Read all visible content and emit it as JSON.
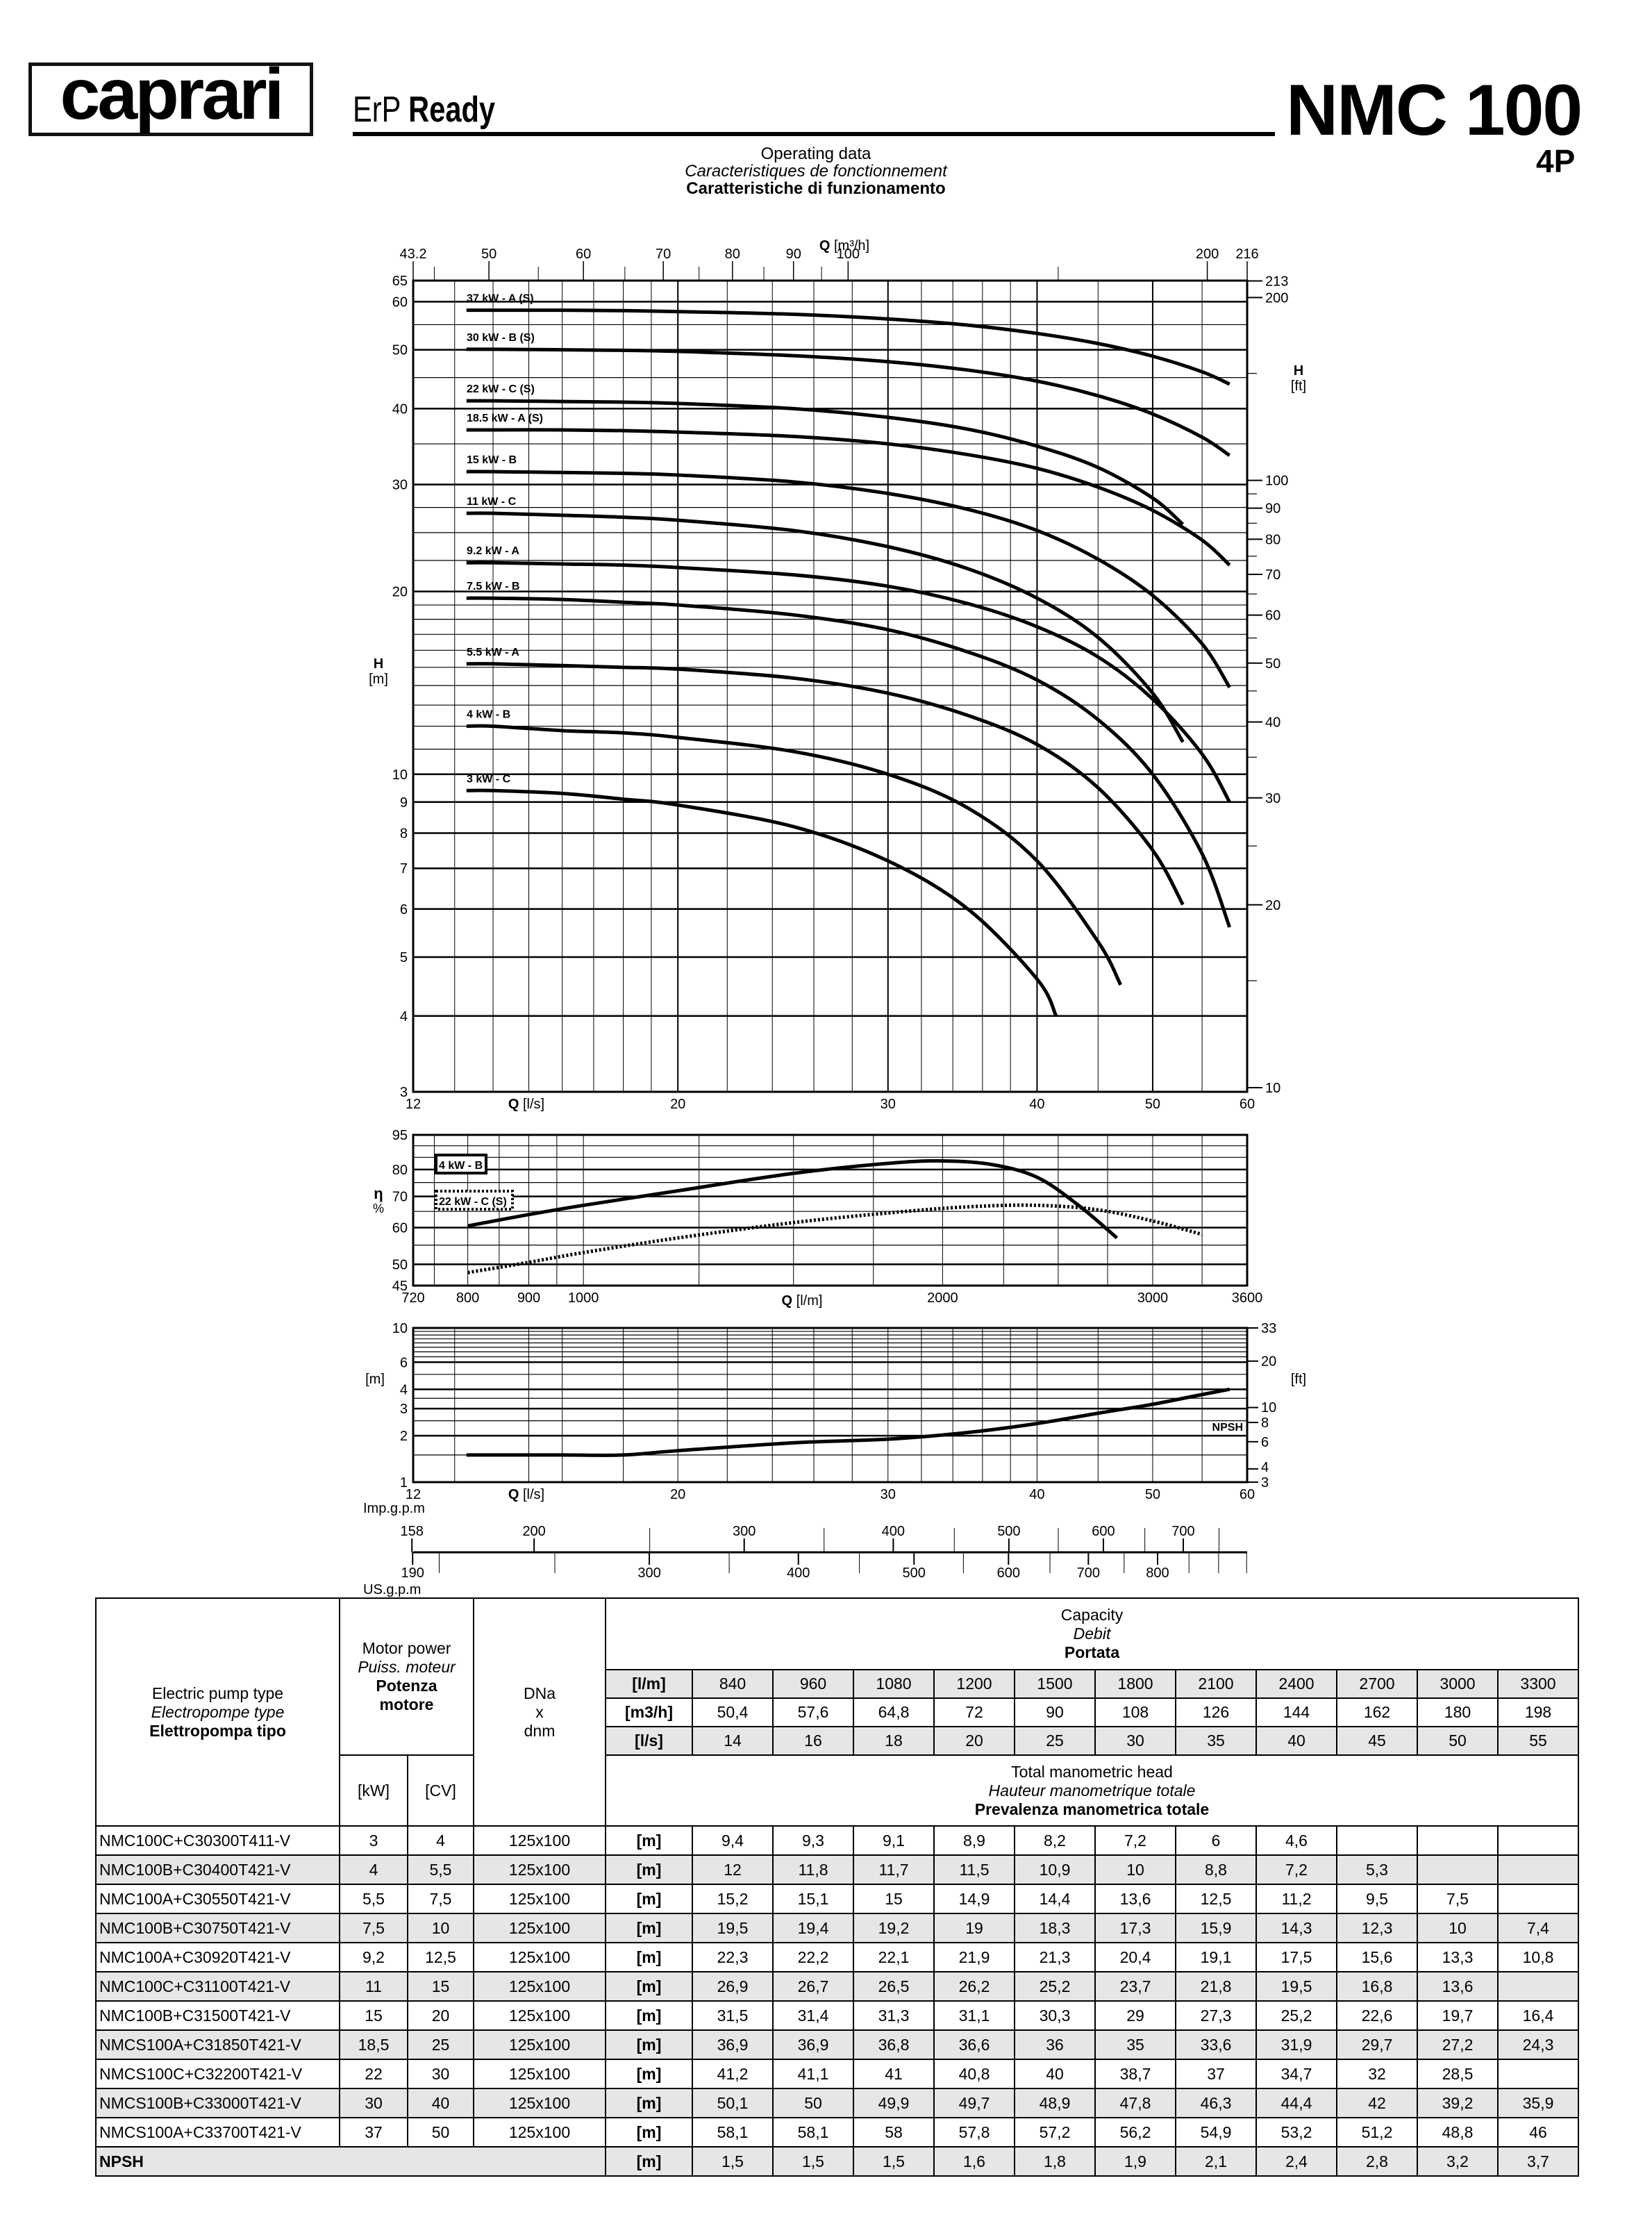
{
  "header": {
    "brand": "caprari",
    "tagline_light": "ErP",
    "tagline_bold": "Ready",
    "model": "NMC 100",
    "poles": "4P",
    "subtitle_en": "Operating data",
    "subtitle_fr": "Caracteristiques de fonctionnement",
    "subtitle_it": "Caratteristiche di funzionamento"
  },
  "colors": {
    "ink": "#000000",
    "row_shade": "#e6e6e6"
  },
  "flow_scales": {
    "imp_label": "Imp.g.p.m",
    "us_label": "US.g.p.m",
    "imp_ticks": [
      158,
      200,
      300,
      400,
      500,
      600,
      700
    ],
    "us_ticks": [
      190,
      300,
      400,
      500,
      600,
      700,
      800
    ]
  },
  "chart_data": [
    {
      "type": "line",
      "title": "",
      "x_label": "Q [l/s]",
      "x_top_label": "Q [m³/h]",
      "y_label": "H [m]",
      "y2_label": "H [ft]",
      "x_scale": "log",
      "y_scale": "log",
      "xlim": [
        12,
        60
      ],
      "ylim": [
        3,
        65
      ],
      "grid": true,
      "x_ticks": [
        12,
        20,
        30,
        40,
        50,
        60
      ],
      "x_top_ticks": [
        "43.2",
        "50",
        "60",
        "70",
        "80",
        "90",
        "100",
        "200",
        "216"
      ],
      "y_ticks": [
        3,
        4,
        5,
        6,
        7,
        8,
        9,
        10,
        20,
        30,
        40,
        50,
        60,
        65
      ],
      "y2_ticks": [
        10,
        20,
        30,
        40,
        50,
        60,
        70,
        80,
        90,
        100,
        200,
        213
      ],
      "series": [
        {
          "name": "37 kW - A (S)",
          "x": [
            13.3,
            14,
            16,
            18,
            20,
            25,
            30,
            35,
            40,
            45,
            50,
            55,
            58
          ],
          "y": [
            58.1,
            58.1,
            58.1,
            58,
            57.8,
            57.2,
            56.2,
            54.9,
            53.2,
            51.2,
            48.8,
            46,
            43.9
          ]
        },
        {
          "name": "30 kW - B (S)",
          "x": [
            13.3,
            14,
            16,
            18,
            20,
            25,
            30,
            35,
            40,
            45,
            50,
            55,
            58
          ],
          "y": [
            50.1,
            50.1,
            50,
            49.9,
            49.7,
            48.9,
            47.8,
            46.3,
            44.4,
            42,
            39.2,
            35.9,
            33.5
          ]
        },
        {
          "name": "22 kW - C (S)",
          "x": [
            13.3,
            14,
            16,
            18,
            20,
            25,
            30,
            35,
            40,
            45,
            50,
            53
          ],
          "y": [
            41.2,
            41.2,
            41.1,
            41,
            40.8,
            40,
            38.7,
            37,
            34.7,
            32,
            28.5,
            25.8
          ]
        },
        {
          "name": "18.5 kW - A (S)",
          "x": [
            13.3,
            14,
            16,
            18,
            20,
            25,
            30,
            35,
            40,
            45,
            50,
            55,
            58
          ],
          "y": [
            36.9,
            36.9,
            36.9,
            36.8,
            36.6,
            36,
            35,
            33.6,
            31.9,
            29.7,
            27.2,
            24.3,
            22.1
          ]
        },
        {
          "name": "15 kW - B",
          "x": [
            13.3,
            14,
            16,
            18,
            20,
            25,
            30,
            35,
            40,
            45,
            50,
            55,
            58
          ],
          "y": [
            31.5,
            31.5,
            31.4,
            31.3,
            31.1,
            30.3,
            29,
            27.3,
            25.2,
            22.6,
            19.7,
            16.4,
            13.9
          ]
        },
        {
          "name": "11 kW - C",
          "x": [
            13.3,
            14,
            16,
            18,
            20,
            25,
            30,
            35,
            40,
            45,
            50,
            53
          ],
          "y": [
            26.9,
            26.9,
            26.7,
            26.5,
            26.2,
            25.2,
            23.7,
            21.8,
            19.5,
            16.8,
            13.6,
            11.3
          ]
        },
        {
          "name": "9.2 kW - A",
          "x": [
            13.3,
            14,
            16,
            18,
            20,
            25,
            30,
            35,
            40,
            45,
            50,
            55,
            58
          ],
          "y": [
            22.3,
            22.3,
            22.2,
            22.1,
            21.9,
            21.3,
            20.4,
            19.1,
            17.5,
            15.6,
            13.3,
            10.8,
            9.0
          ]
        },
        {
          "name": "7.5 kW - B",
          "x": [
            13.3,
            14,
            16,
            18,
            20,
            25,
            30,
            35,
            40,
            45,
            50,
            55,
            58
          ],
          "y": [
            19.5,
            19.5,
            19.4,
            19.2,
            19,
            18.3,
            17.3,
            15.9,
            14.3,
            12.3,
            10,
            7.4,
            5.6
          ]
        },
        {
          "name": "5.5 kW - A",
          "x": [
            13.3,
            14,
            16,
            18,
            20,
            25,
            30,
            35,
            40,
            45,
            50,
            53
          ],
          "y": [
            15.2,
            15.2,
            15.1,
            15,
            14.9,
            14.4,
            13.6,
            12.5,
            11.2,
            9.5,
            7.5,
            6.1
          ]
        },
        {
          "name": "4 kW - B",
          "x": [
            13.3,
            14,
            16,
            18,
            20,
            25,
            30,
            35,
            40,
            45,
            47
          ],
          "y": [
            12,
            12,
            11.8,
            11.7,
            11.5,
            10.9,
            10,
            8.8,
            7.2,
            5.3,
            4.5
          ]
        },
        {
          "name": "3 kW - C",
          "x": [
            13.3,
            14,
            16,
            18,
            20,
            25,
            30,
            35,
            40,
            41.5
          ],
          "y": [
            9.4,
            9.4,
            9.3,
            9.1,
            8.9,
            8.2,
            7.2,
            6,
            4.6,
            4.0
          ]
        }
      ]
    },
    {
      "type": "line",
      "title": "",
      "x_label": "Q [l/m]",
      "y_label": "η %",
      "x_scale": "log",
      "y_scale": "log",
      "xlim": [
        720,
        3600
      ],
      "ylim": [
        45,
        95
      ],
      "grid": true,
      "x_ticks": [
        720,
        800,
        900,
        1000,
        2000,
        3000,
        3600
      ],
      "y_ticks": [
        45,
        50,
        60,
        70,
        80,
        95
      ],
      "legend": "top-left",
      "series": [
        {
          "name": "4 kW - B",
          "line_style": "solid",
          "x": [
            800,
            900,
            1000,
            1200,
            1500,
            1800,
            2000,
            2200,
            2400,
            2600,
            2800
          ],
          "y": [
            60.5,
            64,
            67,
            72,
            78.5,
            82.5,
            83.5,
            82,
            77,
            67,
            57
          ]
        },
        {
          "name": "22 kW - C (S)",
          "line_style": "dotted",
          "x": [
            800,
            900,
            1000,
            1200,
            1500,
            1800,
            2100,
            2400,
            2700,
            3000,
            3300
          ],
          "y": [
            48,
            50.5,
            53,
            57,
            61.5,
            64.5,
            66.5,
            67,
            65.5,
            62,
            58
          ]
        }
      ]
    },
    {
      "type": "line",
      "title": "",
      "x_label": "Q [l/s]",
      "y_label": "[m]",
      "y2_label": "[ft]",
      "x_scale": "log",
      "y_scale": "log",
      "xlim": [
        12,
        60
      ],
      "ylim": [
        1,
        10
      ],
      "grid": true,
      "x_ticks": [
        12,
        20,
        30,
        40,
        50,
        60
      ],
      "y_ticks": [
        1,
        2,
        3,
        4,
        6,
        10
      ],
      "y2_ticks": [
        3,
        4,
        6,
        8,
        10,
        20,
        33
      ],
      "series": [
        {
          "name": "NPSH",
          "x": [
            13.3,
            14,
            16,
            18,
            20,
            25,
            30,
            35,
            40,
            45,
            50,
            55,
            58
          ],
          "y": [
            1.5,
            1.5,
            1.5,
            1.5,
            1.6,
            1.8,
            1.9,
            2.1,
            2.4,
            2.8,
            3.2,
            3.7,
            4.0
          ]
        }
      ]
    }
  ],
  "table": {
    "type_header": {
      "en": "Electric pump type",
      "fr": "Electropompe type",
      "it": "Elettropompa tipo"
    },
    "power_header": {
      "en": "Motor power",
      "fr": "Puiss. moteur",
      "it": "Potenza motore"
    },
    "dn_header": {
      "l1": "DNa",
      "l2": "x",
      "l3": "dnm"
    },
    "capacity_header": {
      "en": "Capacity",
      "fr": "Debit",
      "it": "Portata"
    },
    "head_header": {
      "en": "Total manometric head",
      "fr": "Hauteur manometrique totale",
      "it": "Prevalenza manometrica totale"
    },
    "kw_unit": "[kW]",
    "cv_unit": "[CV]",
    "flow_rows": [
      {
        "unit": "[l/m]",
        "values": [
          "840",
          "960",
          "1080",
          "1200",
          "1500",
          "1800",
          "2100",
          "2400",
          "2700",
          "3000",
          "3300"
        ]
      },
      {
        "unit": "[m3/h]",
        "values": [
          "50,4",
          "57,6",
          "64,8",
          "72",
          "90",
          "108",
          "126",
          "144",
          "162",
          "180",
          "198"
        ]
      },
      {
        "unit": "[l/s]",
        "values": [
          "14",
          "16",
          "18",
          "20",
          "25",
          "30",
          "35",
          "40",
          "45",
          "50",
          "55"
        ]
      }
    ],
    "rows": [
      {
        "type": "NMC100C+C30300T411-V",
        "kw": "3",
        "cv": "4",
        "dn": "125x100",
        "unit": "[m]",
        "values": [
          "9,4",
          "9,3",
          "9,1",
          "8,9",
          "8,2",
          "7,2",
          "6",
          "4,6",
          "",
          "",
          ""
        ]
      },
      {
        "type": "NMC100B+C30400T421-V",
        "kw": "4",
        "cv": "5,5",
        "dn": "125x100",
        "unit": "[m]",
        "values": [
          "12",
          "11,8",
          "11,7",
          "11,5",
          "10,9",
          "10",
          "8,8",
          "7,2",
          "5,3",
          "",
          ""
        ]
      },
      {
        "type": "NMC100A+C30550T421-V",
        "kw": "5,5",
        "cv": "7,5",
        "dn": "125x100",
        "unit": "[m]",
        "values": [
          "15,2",
          "15,1",
          "15",
          "14,9",
          "14,4",
          "13,6",
          "12,5",
          "11,2",
          "9,5",
          "7,5",
          ""
        ]
      },
      {
        "type": "NMC100B+C30750T421-V",
        "kw": "7,5",
        "cv": "10",
        "dn": "125x100",
        "unit": "[m]",
        "values": [
          "19,5",
          "19,4",
          "19,2",
          "19",
          "18,3",
          "17,3",
          "15,9",
          "14,3",
          "12,3",
          "10",
          "7,4"
        ]
      },
      {
        "type": "NMC100A+C30920T421-V",
        "kw": "9,2",
        "cv": "12,5",
        "dn": "125x100",
        "unit": "[m]",
        "values": [
          "22,3",
          "22,2",
          "22,1",
          "21,9",
          "21,3",
          "20,4",
          "19,1",
          "17,5",
          "15,6",
          "13,3",
          "10,8"
        ]
      },
      {
        "type": "NMC100C+C31100T421-V",
        "kw": "11",
        "cv": "15",
        "dn": "125x100",
        "unit": "[m]",
        "values": [
          "26,9",
          "26,7",
          "26,5",
          "26,2",
          "25,2",
          "23,7",
          "21,8",
          "19,5",
          "16,8",
          "13,6",
          ""
        ]
      },
      {
        "type": "NMC100B+C31500T421-V",
        "kw": "15",
        "cv": "20",
        "dn": "125x100",
        "unit": "[m]",
        "values": [
          "31,5",
          "31,4",
          "31,3",
          "31,1",
          "30,3",
          "29",
          "27,3",
          "25,2",
          "22,6",
          "19,7",
          "16,4"
        ]
      },
      {
        "type": "NMCS100A+C31850T421-V",
        "kw": "18,5",
        "cv": "25",
        "dn": "125x100",
        "unit": "[m]",
        "values": [
          "36,9",
          "36,9",
          "36,8",
          "36,6",
          "36",
          "35",
          "33,6",
          "31,9",
          "29,7",
          "27,2",
          "24,3"
        ]
      },
      {
        "type": "NMCS100C+C32200T421-V",
        "kw": "22",
        "cv": "30",
        "dn": "125x100",
        "unit": "[m]",
        "values": [
          "41,2",
          "41,1",
          "41",
          "40,8",
          "40",
          "38,7",
          "37",
          "34,7",
          "32",
          "28,5",
          ""
        ]
      },
      {
        "type": "NMCS100B+C33000T421-V",
        "kw": "30",
        "cv": "40",
        "dn": "125x100",
        "unit": "[m]",
        "values": [
          "50,1",
          "50",
          "49,9",
          "49,7",
          "48,9",
          "47,8",
          "46,3",
          "44,4",
          "42",
          "39,2",
          "35,9"
        ]
      },
      {
        "type": "NMCS100A+C33700T421-V",
        "kw": "37",
        "cv": "50",
        "dn": "125x100",
        "unit": "[m]",
        "values": [
          "58,1",
          "58,1",
          "58",
          "57,8",
          "57,2",
          "56,2",
          "54,9",
          "53,2",
          "51,2",
          "48,8",
          "46"
        ]
      }
    ],
    "npsh_row": {
      "label": "NPSH",
      "unit": "[m]",
      "values": [
        "1,5",
        "1,5",
        "1,5",
        "1,6",
        "1,8",
        "1,9",
        "2,1",
        "2,4",
        "2,8",
        "3,2",
        "3,7"
      ]
    }
  }
}
